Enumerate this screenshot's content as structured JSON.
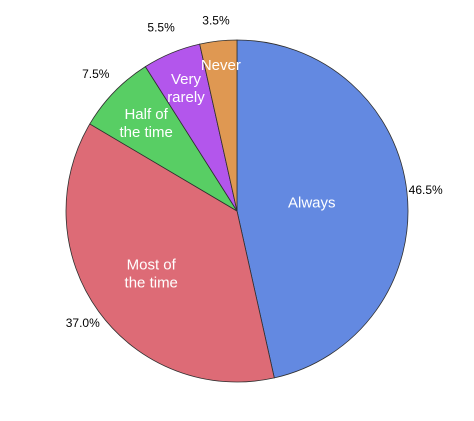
{
  "chart_data": {
    "type": "pie",
    "title": "",
    "slices": [
      {
        "label": "Always",
        "value": 46.5,
        "value_label": "46.5%",
        "color": "#6389e1"
      },
      {
        "label": "Most of the time",
        "value": 37.0,
        "value_label": "37.0%",
        "color": "#dd6b76"
      },
      {
        "label": "Half of the time",
        "value": 7.5,
        "value_label": "7.5%",
        "color": "#58ce64"
      },
      {
        "label": "Very rarely",
        "value": 5.5,
        "value_label": "5.5%",
        "color": "#b356ec"
      },
      {
        "label": "Never",
        "value": 3.5,
        "value_label": "3.5%",
        "color": "#df9852"
      }
    ],
    "start_angle": "12 o'clock",
    "direction": "clockwise",
    "legend": "none"
  }
}
